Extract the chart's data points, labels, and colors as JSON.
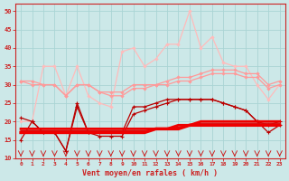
{
  "x": [
    0,
    1,
    2,
    3,
    4,
    5,
    6,
    7,
    8,
    9,
    10,
    11,
    12,
    13,
    14,
    15,
    16,
    17,
    18,
    19,
    20,
    21,
    22,
    23
  ],
  "light_pink_gust": [
    20,
    20,
    35,
    35,
    27,
    35,
    27,
    25,
    24,
    39,
    40,
    35,
    37,
    41,
    41,
    50,
    40,
    43,
    36,
    35,
    35,
    30,
    26,
    30
  ],
  "mid_pink_flat": [
    31,
    31,
    30,
    30,
    27,
    30,
    30,
    28,
    28,
    28,
    30,
    30,
    30,
    31,
    32,
    32,
    33,
    34,
    34,
    34,
    33,
    33,
    30,
    31
  ],
  "mid_pink_flat2": [
    31,
    30,
    30,
    30,
    27,
    30,
    30,
    28,
    27,
    27,
    29,
    29,
    30,
    30,
    31,
    31,
    32,
    33,
    33,
    33,
    32,
    32,
    29,
    30
  ],
  "dark_red_gust": [
    21,
    20,
    17,
    17,
    12,
    25,
    17,
    17,
    17,
    17,
    24,
    24,
    25,
    26,
    26,
    26,
    26,
    26,
    25,
    24,
    23,
    20,
    19,
    20
  ],
  "dark_red_avg": [
    15,
    20,
    17,
    17,
    12,
    24,
    17,
    16,
    16,
    16,
    22,
    23,
    24,
    25,
    26,
    26,
    26,
    26,
    25,
    24,
    23,
    20,
    17,
    19
  ],
  "flat_thick1": [
    17,
    17,
    17,
    17,
    17,
    17,
    17,
    17,
    17,
    17,
    17,
    17,
    18,
    18,
    18,
    19,
    19,
    19,
    19,
    19,
    19,
    19,
    19,
    19
  ],
  "flat_thick2": [
    18,
    18,
    18,
    18,
    18,
    18,
    18,
    18,
    18,
    18,
    18,
    18,
    18,
    18,
    19,
    19,
    20,
    20,
    20,
    20,
    20,
    20,
    20,
    20
  ],
  "flat_thin": [
    17.5,
    17.5,
    17.5,
    17.5,
    17.5,
    17.5,
    17.5,
    17.5,
    17.5,
    17.5,
    17.5,
    17.5,
    18,
    18,
    18.5,
    19,
    19.5,
    19.5,
    19.5,
    19.5,
    19.5,
    19.5,
    19.5,
    19.5
  ],
  "ylim": [
    10,
    52
  ],
  "yticks": [
    10,
    15,
    20,
    25,
    30,
    35,
    40,
    45,
    50
  ],
  "xlabel": "Vent moyen/en rafales ( km/h )",
  "bg_color": "#cce8e8",
  "grid_color": "#aad4d4"
}
